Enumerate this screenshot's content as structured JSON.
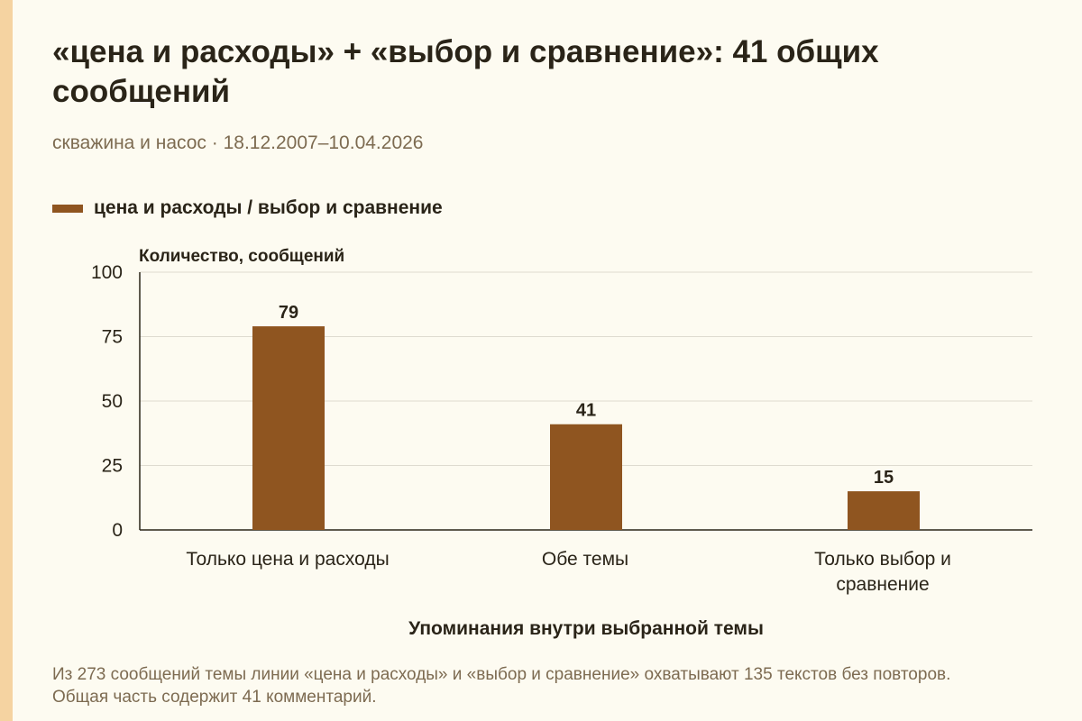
{
  "header": {
    "title": "«цена и расходы» + «выбор и сравнение»: 41 общих сообщений",
    "subtitle": "скважина и насос · 18.12.2007–10.04.2026"
  },
  "footnote": "Из 273 сообщений темы линии «цена и расходы» и «выбор и сравнение» охватывают 135 текстов без повторов. Общая часть содержит 41 комментарий.",
  "colors": {
    "bar": "#8f5520",
    "background": "#fdfbf1",
    "accent_strip": "#f5d3a1",
    "grid": "#dedbd0"
  },
  "chart_data": {
    "type": "bar",
    "categories": [
      "Только цена и расходы",
      "Обе темы",
      "Только выбор и сравнение"
    ],
    "series": [
      {
        "name": "цена и расходы / выбор и сравнение",
        "values": [
          79,
          41,
          15
        ]
      }
    ],
    "data_labels": [
      "79",
      "41",
      "15"
    ],
    "xlabel": "Упоминания внутри выбранной темы",
    "ylabel": "Количество, сообщений",
    "ylim": [
      0,
      100
    ],
    "yticks": [
      "0",
      "25",
      "50",
      "75",
      "100"
    ],
    "grid": true,
    "legend": "top-left"
  }
}
